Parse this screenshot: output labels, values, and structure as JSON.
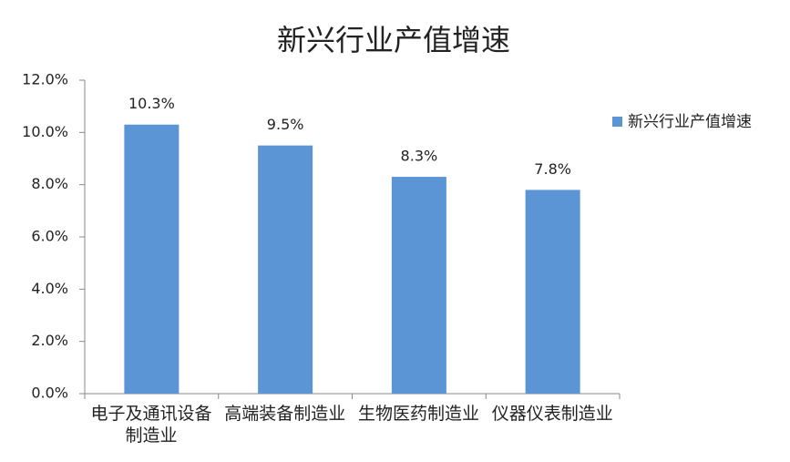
{
  "chart_data": {
    "type": "bar",
    "title": "新兴行业产值增速",
    "categories": [
      "电子及通讯设备制造业",
      "高端装备制造业",
      "生物医药制造业",
      "仪器仪表制造业"
    ],
    "series": [
      {
        "name": "新兴行业产值增速",
        "color": "#5b95d6",
        "values": [
          10.3,
          9.5,
          8.3,
          7.8
        ],
        "value_labels": [
          "10.3%",
          "9.5%",
          "8.3%",
          "7.8%"
        ]
      }
    ],
    "ylim": [
      0,
      12
    ],
    "yticks": [
      {
        "value": 0,
        "label": "0.0%"
      },
      {
        "value": 2,
        "label": "2.0%"
      },
      {
        "value": 4,
        "label": "4.0%"
      },
      {
        "value": 6,
        "label": "6.0%"
      },
      {
        "value": 8,
        "label": "8.0%"
      },
      {
        "value": 10,
        "label": "10.0%"
      },
      {
        "value": 12,
        "label": "12.0%"
      }
    ]
  }
}
